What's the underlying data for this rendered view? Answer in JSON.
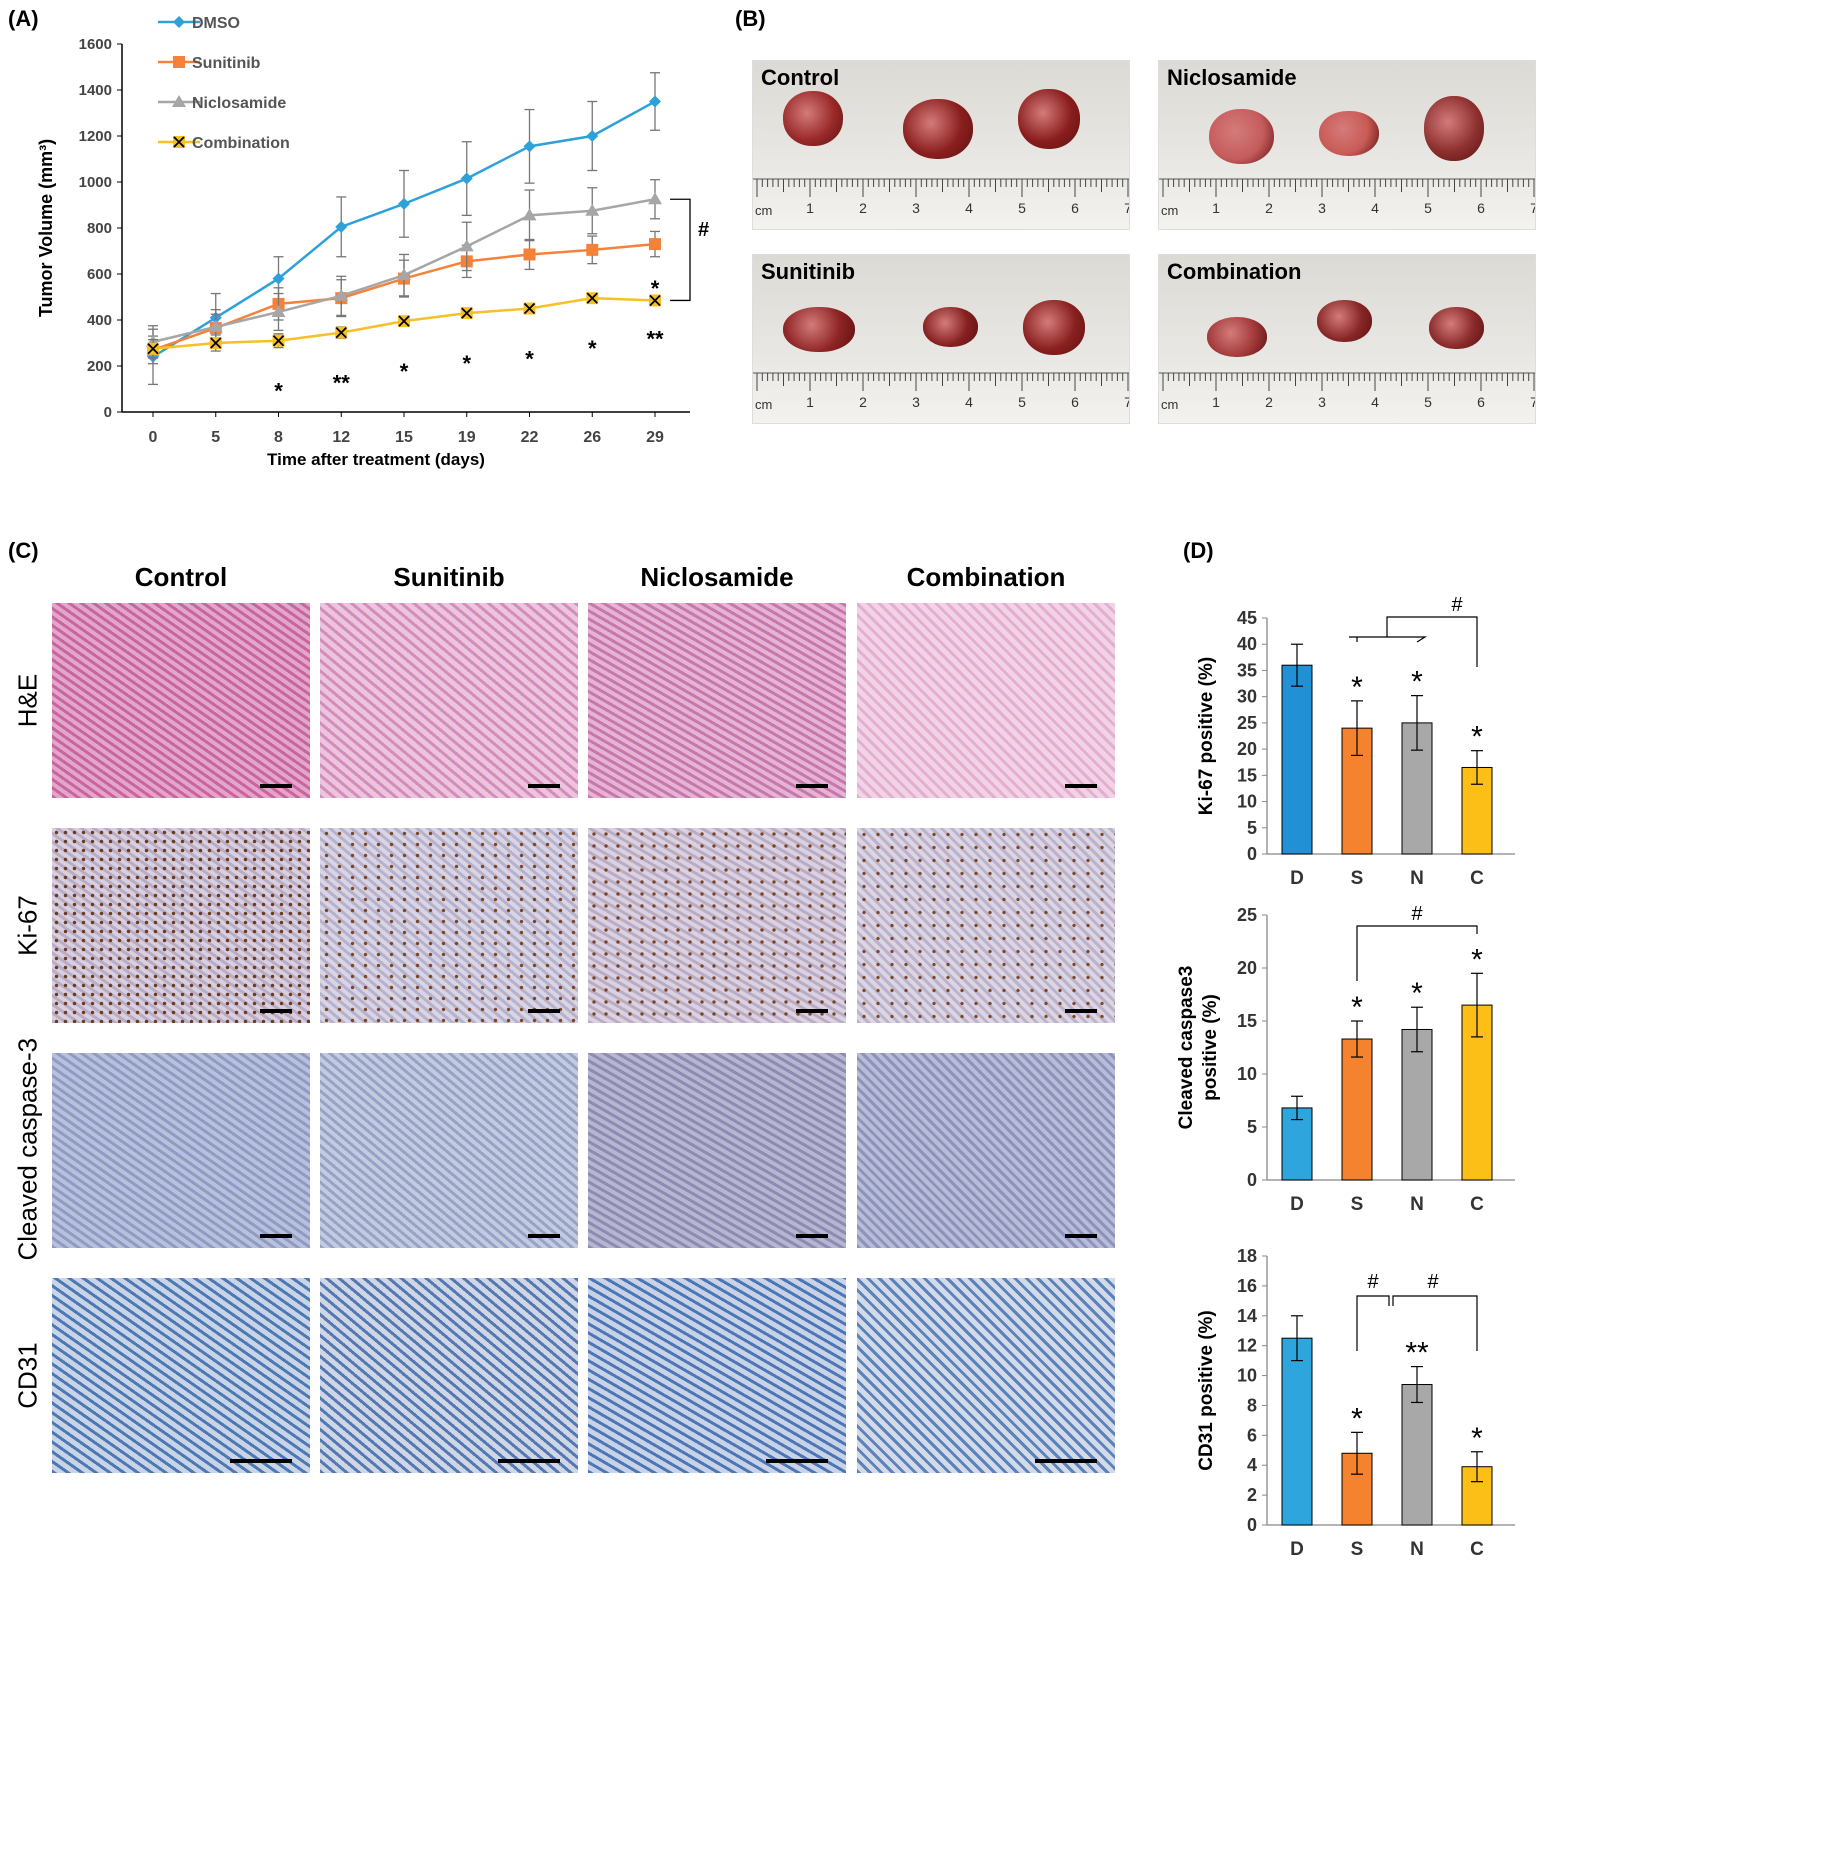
{
  "panel_labels": {
    "a": "(A)",
    "b": "(B)",
    "c": "(C)",
    "d": "(D)"
  },
  "chart_data": [
    {
      "id": "A",
      "type": "line",
      "title": "",
      "xlabel": "Time after treatment (days)",
      "ylabel": "Tumor Volume (mm³)",
      "x": [
        0,
        5,
        8,
        12,
        15,
        19,
        22,
        26,
        29
      ],
      "ylim": [
        0,
        1600
      ],
      "yticks": [
        0,
        200,
        400,
        600,
        800,
        1000,
        1200,
        1400,
        1600
      ],
      "series": [
        {
          "name": "DMSO",
          "color": "#2ea1d9",
          "marker": "diamond",
          "values": [
            240,
            410,
            580,
            805,
            905,
            1015,
            1155,
            1200,
            1350
          ],
          "errors": [
            120,
            105,
            95,
            130,
            145,
            160,
            160,
            150,
            125
          ]
        },
        {
          "name": "Sunitinib",
          "color": "#f5823a",
          "marker": "square",
          "values": [
            270,
            365,
            470,
            495,
            580,
            655,
            685,
            705,
            730
          ],
          "errors": [
            60,
            60,
            70,
            80,
            80,
            70,
            65,
            60,
            55
          ]
        },
        {
          "name": "Niclosamide",
          "color": "#a6a6a6",
          "marker": "triangle",
          "values": [
            305,
            370,
            435,
            505,
            595,
            720,
            855,
            875,
            925
          ],
          "errors": [
            70,
            75,
            80,
            85,
            90,
            105,
            110,
            100,
            85
          ]
        },
        {
          "name": "Combination",
          "color": "#f6c027",
          "marker": "x",
          "values": [
            275,
            300,
            310,
            345,
            395,
            430,
            450,
            495,
            485
          ],
          "errors": [
            40,
            35,
            30,
            25,
            20,
            20,
            20,
            15,
            15
          ]
        }
      ],
      "significance": [
        {
          "x": 8,
          "label": "*"
        },
        {
          "x": 12,
          "label": "**"
        },
        {
          "x": 15,
          "label": "*"
        },
        {
          "x": 19,
          "label": "*"
        },
        {
          "x": 22,
          "label": "*"
        },
        {
          "x": 26,
          "label": "*"
        },
        {
          "x": 29,
          "label": "**"
        }
      ],
      "sunitinib_mark": "*",
      "bracket_label": "#"
    },
    {
      "id": "D1",
      "type": "bar",
      "ylabel": "Ki-67 positive  (%)",
      "categories": [
        "D",
        "S",
        "N",
        "C"
      ],
      "values": [
        36,
        24,
        25,
        16.5
      ],
      "errors": [
        4,
        5.2,
        5.2,
        3.2
      ],
      "colors": [
        "#2190d4",
        "#f5822e",
        "#a8a8a8",
        "#fcbf18"
      ],
      "ylim": [
        0,
        45
      ],
      "yticks": [
        0,
        5,
        10,
        15,
        20,
        25,
        30,
        35,
        40,
        45
      ],
      "stars": [
        "",
        "*",
        "*",
        "*"
      ],
      "bracket_label": "#"
    },
    {
      "id": "D2",
      "type": "bar",
      "ylabel_line1": "Cleaved caspase3",
      "ylabel_line2": "positive  (%)",
      "categories": [
        "D",
        "S",
        "N",
        "C"
      ],
      "values": [
        6.8,
        13.3,
        14.2,
        16.5
      ],
      "errors": [
        1.1,
        1.7,
        2.1,
        3.0
      ],
      "colors": [
        "#2ea6dd",
        "#f5822e",
        "#a8a8a8",
        "#fcbf18"
      ],
      "ylim": [
        0,
        25
      ],
      "yticks": [
        0,
        5,
        10,
        15,
        20,
        25
      ],
      "stars": [
        "",
        "*",
        "*",
        "*"
      ],
      "bracket_label": "#"
    },
    {
      "id": "D3",
      "type": "bar",
      "ylabel": "CD31 positive  (%)",
      "categories": [
        "D",
        "S",
        "N",
        "C"
      ],
      "values": [
        12.5,
        4.8,
        9.4,
        3.9
      ],
      "errors": [
        1.5,
        1.4,
        1.2,
        1.0
      ],
      "colors": [
        "#2ea6dd",
        "#f5822e",
        "#a8a8a8",
        "#fcbf18"
      ],
      "ylim": [
        0,
        18
      ],
      "yticks": [
        0,
        2,
        4,
        6,
        8,
        10,
        12,
        14,
        16,
        18
      ],
      "stars": [
        "",
        "*",
        "**",
        "*"
      ],
      "bracket_labels": [
        "#",
        "#"
      ]
    }
  ],
  "panel_b": {
    "photos": [
      {
        "label": "Control"
      },
      {
        "label": "Niclosamide"
      },
      {
        "label": "Sunitinib"
      },
      {
        "label": "Combination"
      }
    ],
    "ruler_unit": "cm",
    "ruler_numbers": [
      "1",
      "2",
      "3",
      "4",
      "5",
      "6",
      "7"
    ]
  },
  "panel_c": {
    "columns": [
      "Control",
      "Sunitinib",
      "Niclosamide",
      "Combination"
    ],
    "rows": [
      "H&E",
      "Ki-67",
      "Cleaved caspase-3",
      "CD31"
    ]
  }
}
